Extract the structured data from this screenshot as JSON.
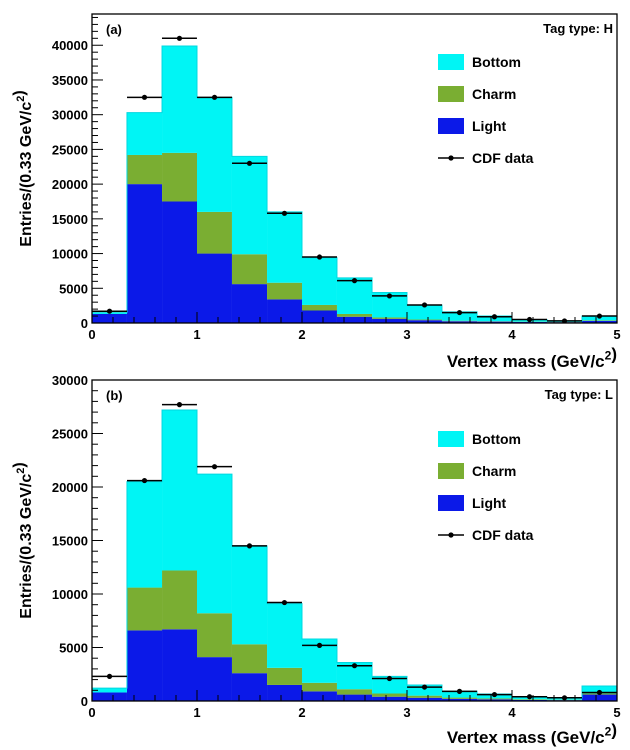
{
  "chart_data": [
    {
      "type": "bar",
      "panel_label": "(a)",
      "tag_label": "Tag type",
      "tag_value": "H",
      "xlabel": "Vertex mass (GeV/c²)",
      "ylabel": "Entries/(0.33 GeV/c²)",
      "xlim": [
        0,
        5
      ],
      "ylim": [
        0,
        44500
      ],
      "x_ticks": [
        "0",
        "1",
        "2",
        "3",
        "4",
        "5"
      ],
      "y_ticks": [
        "0",
        "5000",
        "10000",
        "15000",
        "20000",
        "25000",
        "30000",
        "35000",
        "40000"
      ],
      "bin_edges": [
        0,
        0.333,
        0.667,
        1.0,
        1.333,
        1.667,
        2.0,
        2.333,
        2.667,
        3.0,
        3.333,
        3.667,
        4.0,
        4.333,
        4.667,
        5.0
      ],
      "stacked": true,
      "series": [
        {
          "name": "Light",
          "color": "#0b19e8",
          "values": [
            1300,
            20000,
            17500,
            10000,
            5600,
            3400,
            1800,
            900,
            600,
            400,
            250,
            200,
            150,
            120,
            300
          ]
        },
        {
          "name": "Charm",
          "color": "#7aae32",
          "values": [
            0,
            4200,
            7000,
            6000,
            4300,
            2400,
            800,
            400,
            200,
            100,
            80,
            60,
            40,
            30,
            80
          ]
        },
        {
          "name": "Bottom",
          "color": "#00f5f5",
          "values": [
            200,
            6100,
            15400,
            16500,
            14100,
            10200,
            6800,
            5200,
            3600,
            2100,
            1270,
            740,
            310,
            150,
            620
          ]
        }
      ],
      "data_series": {
        "name": "CDF data",
        "x": [
          0.167,
          0.5,
          0.833,
          1.167,
          1.5,
          1.833,
          2.167,
          2.5,
          2.833,
          3.167,
          3.5,
          3.833,
          4.167,
          4.5,
          4.833
        ],
        "y": [
          1700,
          32500,
          41000,
          32500,
          23000,
          15800,
          9500,
          6100,
          3900,
          2600,
          1500,
          900,
          500,
          300,
          1000
        ]
      },
      "legend_position": "right",
      "legend": [
        "Bottom",
        "Charm",
        "Light",
        "CDF data"
      ]
    },
    {
      "type": "bar",
      "panel_label": "(b)",
      "tag_label": "Tag type",
      "tag_value": "L",
      "xlabel": "Vertex mass (GeV/c²)",
      "ylabel": "Entries/(0.33 GeV/c²)",
      "xlim": [
        0,
        5
      ],
      "ylim": [
        0,
        30000
      ],
      "x_ticks": [
        "0",
        "1",
        "2",
        "3",
        "4",
        "5"
      ],
      "y_ticks": [
        "0",
        "5000",
        "10000",
        "15000",
        "20000",
        "25000",
        "30000"
      ],
      "bin_edges": [
        0,
        0.333,
        0.667,
        1.0,
        1.333,
        1.667,
        2.0,
        2.333,
        2.667,
        3.0,
        3.333,
        3.667,
        4.0,
        4.333,
        4.667,
        5.0
      ],
      "stacked": true,
      "series": [
        {
          "name": "Light",
          "color": "#0b19e8",
          "values": [
            800,
            6600,
            6700,
            4100,
            2600,
            1500,
            900,
            600,
            400,
            300,
            200,
            150,
            100,
            80,
            600
          ]
        },
        {
          "name": "Charm",
          "color": "#7aae32",
          "values": [
            0,
            4000,
            5500,
            4100,
            2700,
            1600,
            800,
            500,
            300,
            200,
            120,
            90,
            60,
            40,
            100
          ]
        },
        {
          "name": "Bottom",
          "color": "#00f5f5",
          "values": [
            400,
            9900,
            15000,
            13000,
            9200,
            6000,
            4100,
            2500,
            1600,
            1000,
            600,
            410,
            240,
            180,
            700
          ]
        }
      ],
      "data_series": {
        "name": "CDF data",
        "x": [
          0.167,
          0.5,
          0.833,
          1.167,
          1.5,
          1.833,
          2.167,
          2.5,
          2.833,
          3.167,
          3.5,
          3.833,
          4.167,
          4.5,
          4.833
        ],
        "y": [
          2300,
          20600,
          27700,
          21900,
          14500,
          9200,
          5200,
          3300,
          2100,
          1300,
          900,
          600,
          400,
          300,
          800
        ]
      },
      "legend_position": "right",
      "legend": [
        "Bottom",
        "Charm",
        "Light",
        "CDF data"
      ]
    }
  ]
}
